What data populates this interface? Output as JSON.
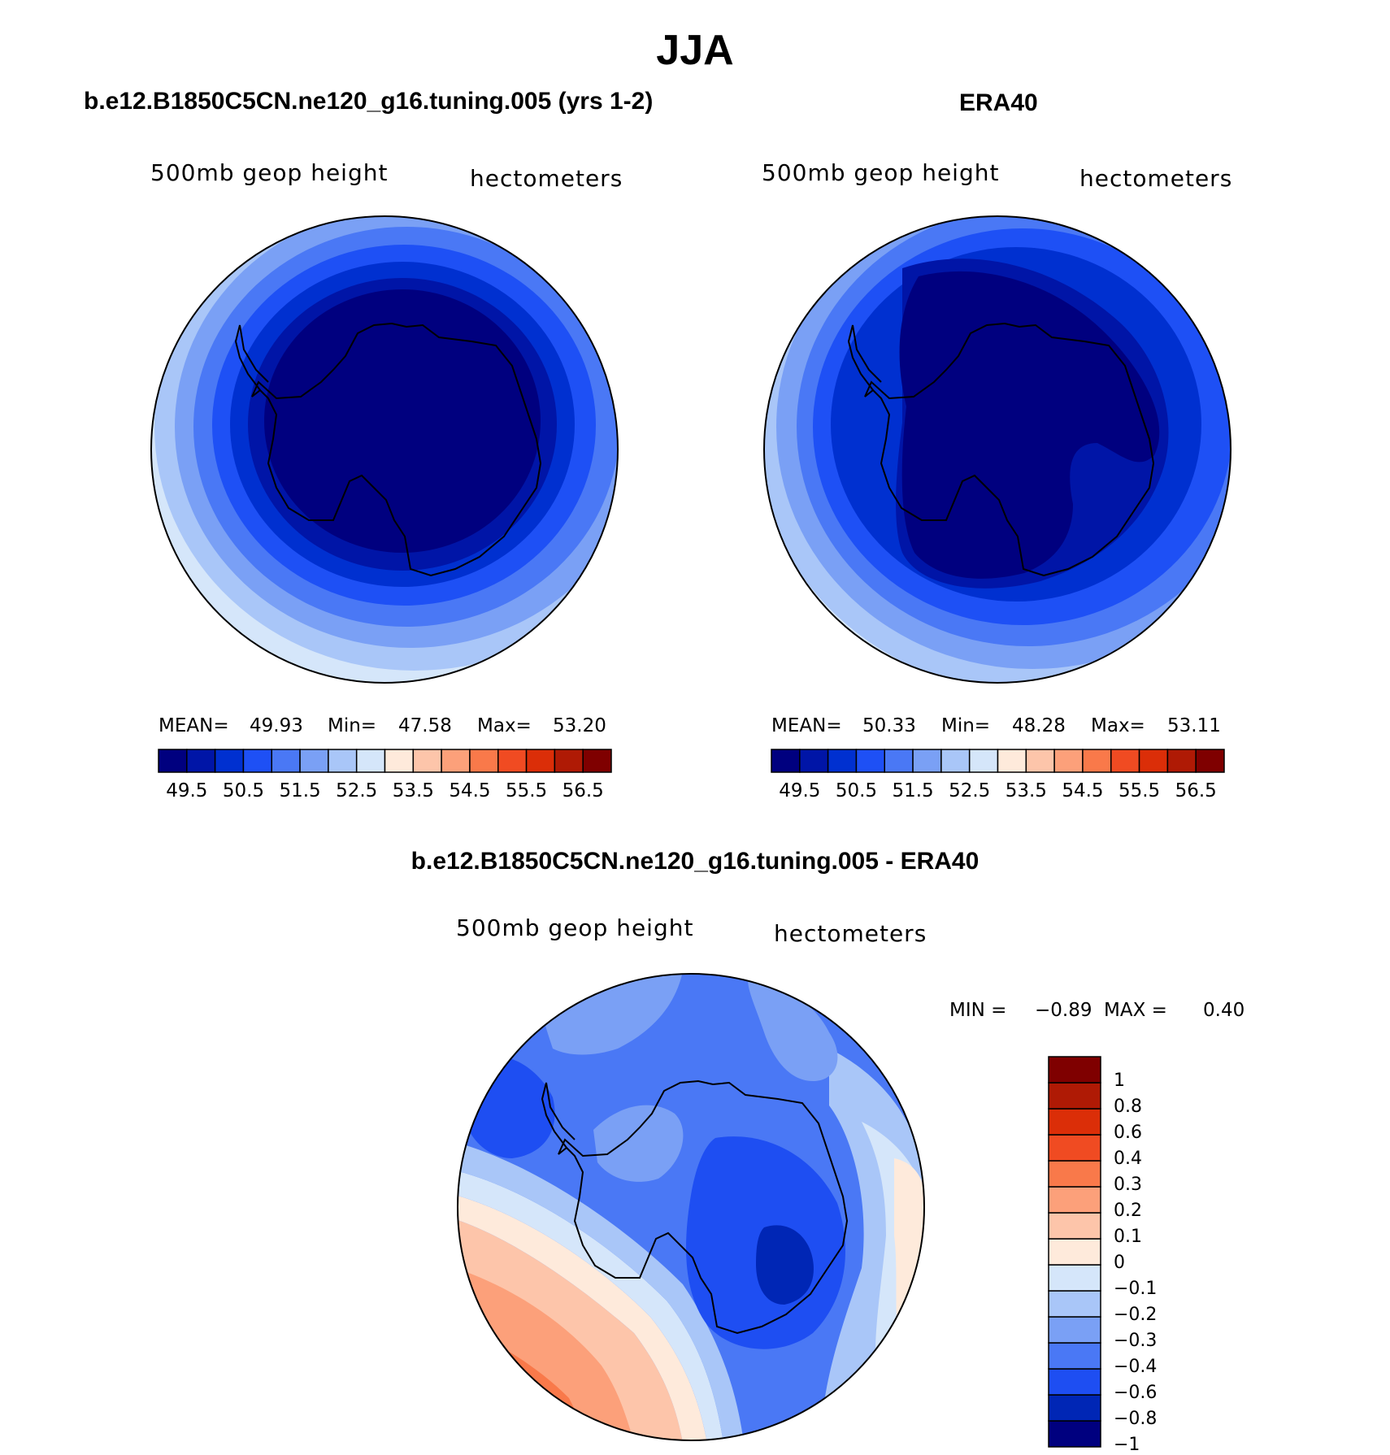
{
  "figure": {
    "main_title": "JJA",
    "panels": [
      {
        "id": "model",
        "title": "b.e12.B1850C5CN.ne120_g16.tuning.005 (yrs 1-2)",
        "variable": "500mb geop height",
        "units": "hectometers",
        "stats": {
          "mean_label": "MEAN=",
          "mean": "49.93",
          "min_label": "Min=",
          "min": "47.58",
          "max_label": "Max=",
          "max": "53.20"
        }
      },
      {
        "id": "obs",
        "title": "ERA40",
        "variable": "500mb geop height",
        "units": "hectometers",
        "stats": {
          "mean_label": "MEAN=",
          "mean": "50.33",
          "min_label": "Min=",
          "min": "48.28",
          "max_label": "Max=",
          "max": "53.11"
        }
      },
      {
        "id": "diff",
        "title": "b.e12.B1850C5CN.ne120_g16.tuning.005 - ERA40",
        "variable": "500mb geop height",
        "units": "hectometers",
        "stats": {
          "min_label": "MIN =",
          "min": "−0.89",
          "max_label": "MAX =",
          "max": "0.40"
        }
      }
    ],
    "field_colorbar": {
      "colors": [
        "#00007f",
        "#0015a7",
        "#0030d0",
        "#1e50f5",
        "#4a78f5",
        "#7aa0f5",
        "#a9c6f8",
        "#d5e6fa",
        "#feeadb",
        "#fdc5aa",
        "#fca07a",
        "#f9794a",
        "#f04b22",
        "#db2e08",
        "#af1a05",
        "#7f0000"
      ],
      "labels": [
        "49.5",
        "50.5",
        "51.5",
        "52.5",
        "53.5",
        "54.5",
        "55.5",
        "56.5"
      ]
    },
    "diff_colorbar": {
      "colors_bottom_to_top": [
        "#00007f",
        "#0026b5",
        "#1e4ef2",
        "#4a78f5",
        "#7aa0f5",
        "#a9c6f8",
        "#d5e6fa",
        "#feeadb",
        "#fdc5aa",
        "#fca07a",
        "#f9794a",
        "#f04b22",
        "#db2e08",
        "#af1a05",
        "#7f0000"
      ],
      "labels_top_to_bottom": [
        "1",
        "0.8",
        "0.6",
        "0.4",
        "0.3",
        "0.2",
        "0.1",
        "0",
        "−0.1",
        "−0.2",
        "−0.3",
        "−0.4",
        "−0.6",
        "−0.8",
        "−1"
      ]
    }
  }
}
